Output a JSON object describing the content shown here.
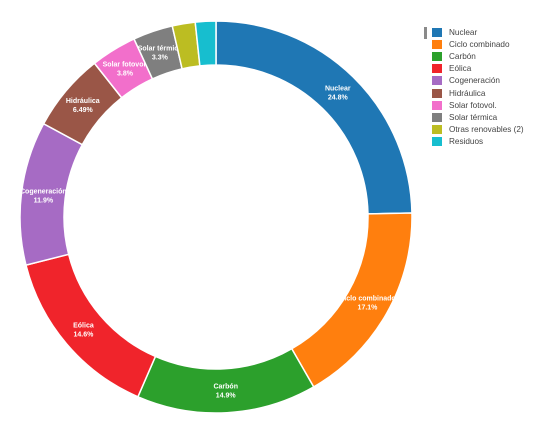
{
  "chart_data": {
    "type": "pie",
    "donut": true,
    "title": "",
    "legend_position": "top-right",
    "slices": [
      {
        "name": "Nuclear",
        "value": 24.8,
        "label": "Nuclear",
        "pct_text": "24.8%",
        "color": "#1f77b4"
      },
      {
        "name": "Ciclo combinado",
        "value": 17.1,
        "label": "Ciclo combinado",
        "pct_text": "17.1%",
        "color": "#ff7f0e"
      },
      {
        "name": "Carbón",
        "value": 14.9,
        "label": "Carbón",
        "pct_text": "14.9%",
        "color": "#2ca02c"
      },
      {
        "name": "Eólica",
        "value": 14.6,
        "label": "Eólica",
        "pct_text": "14.6%",
        "color": "#f0242b"
      },
      {
        "name": "Cogeneración",
        "value": 11.9,
        "label": "Cogeneración",
        "pct_text": "11.9%",
        "color": "#a66bc4"
      },
      {
        "name": "Hidráulica",
        "value": 6.49,
        "label": "Hidráulica",
        "pct_text": "6.49%",
        "color": "#9a5647"
      },
      {
        "name": "Solar fotovol.",
        "value": 3.8,
        "label": "Solar fotovol.",
        "pct_text": "3.8%",
        "color": "#f26fcb"
      },
      {
        "name": "Solar térmica",
        "value": 3.3,
        "label": "Solar térmica",
        "pct_text": "3.3%",
        "color": "#7f7f7f"
      },
      {
        "name": "Otras renovables (2)",
        "value": 1.9,
        "label": "",
        "pct_text": "",
        "color": "#bcbd22"
      },
      {
        "name": "Residuos",
        "value": 1.7,
        "label": "",
        "pct_text": "",
        "color": "#17becf"
      }
    ]
  }
}
